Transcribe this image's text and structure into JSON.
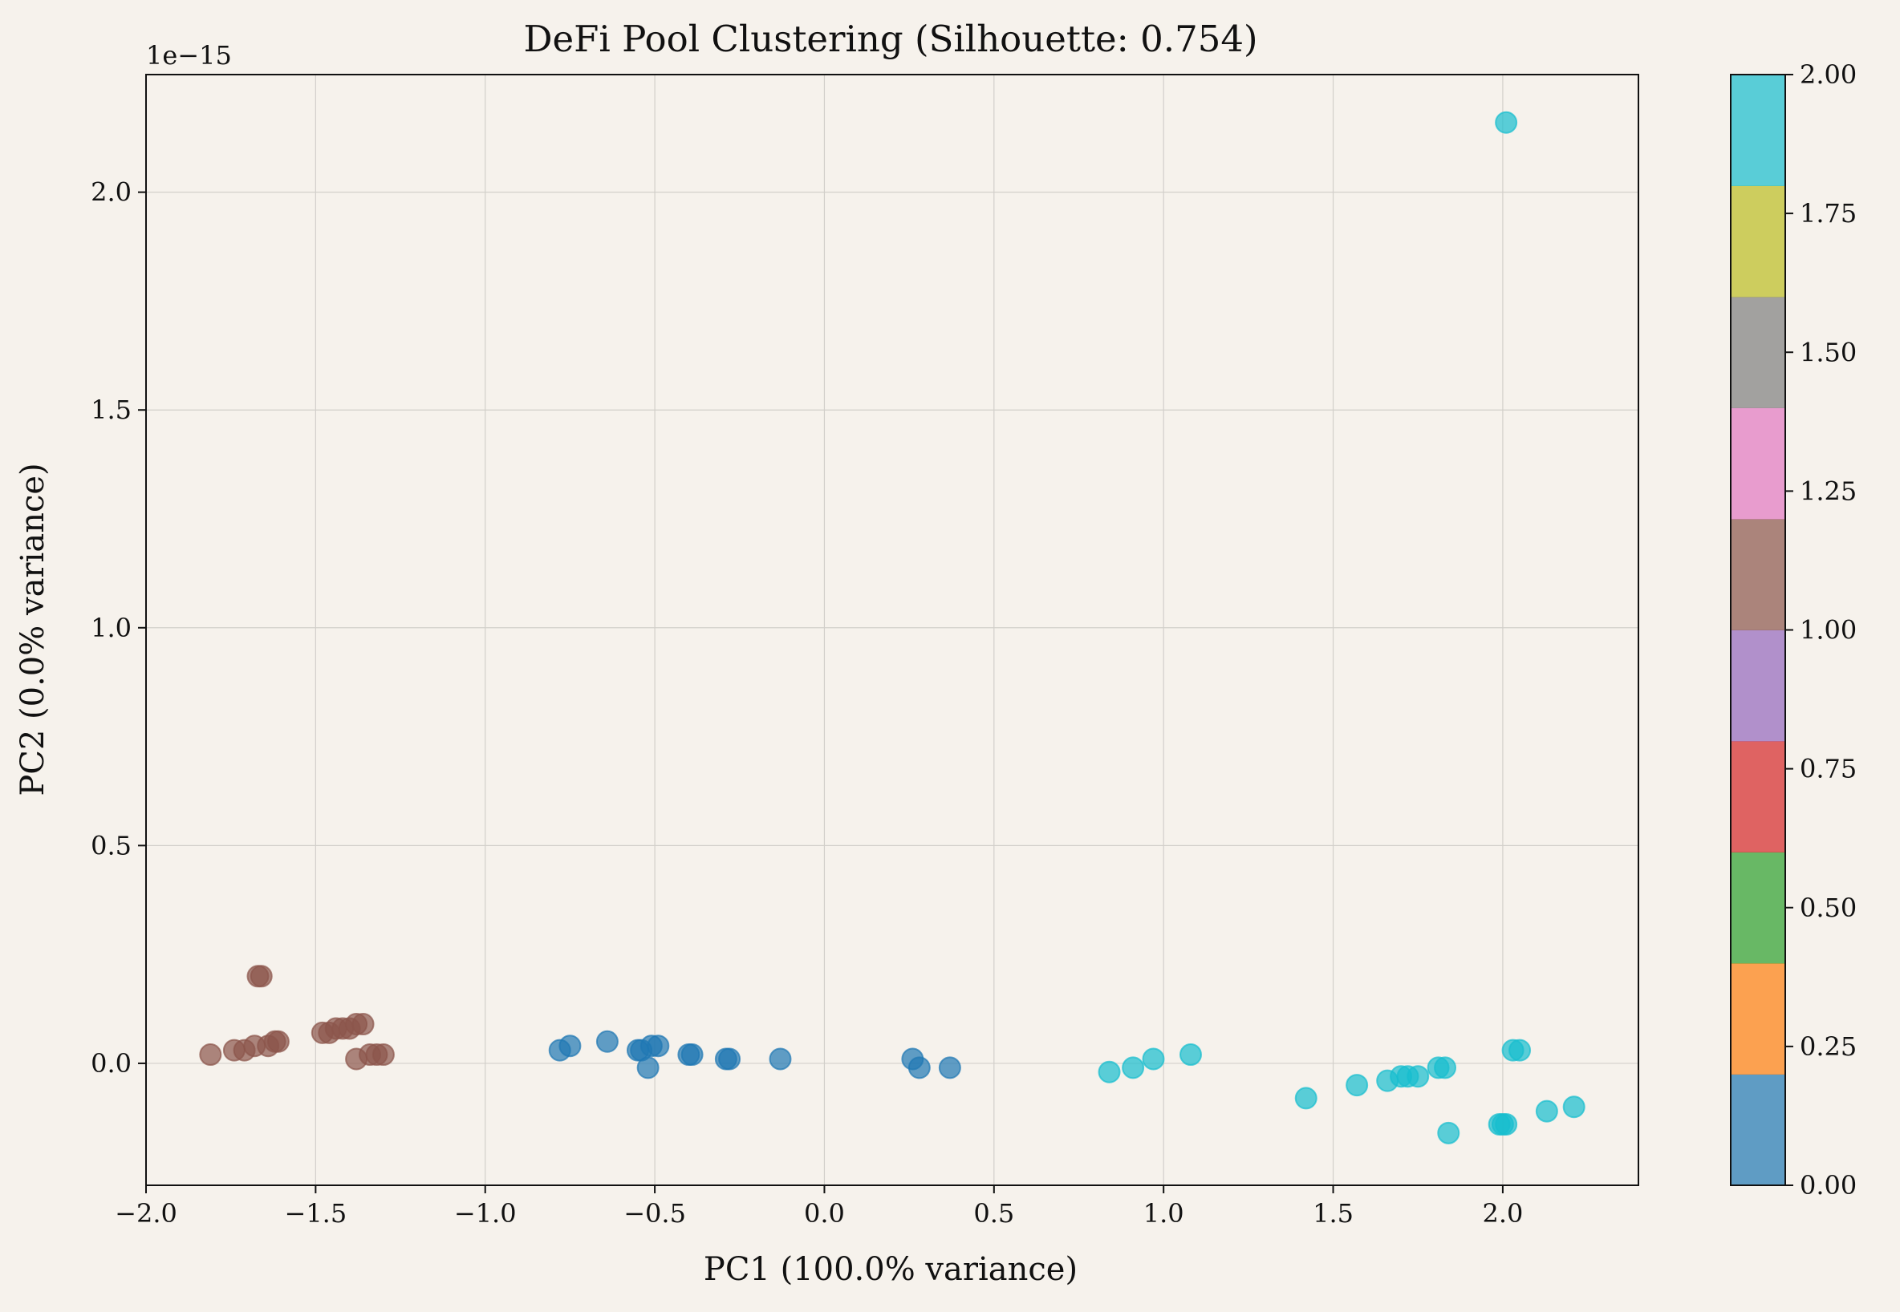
{
  "chart_data": {
    "type": "scatter",
    "title": "DeFi Pool Clustering (Silhouette: 0.754)",
    "xlabel": "PC1 (100.0% variance)",
    "ylabel": "PC2 (0.0% variance)",
    "y_offset_label": "1e−15",
    "xlim": [
      -2.0,
      2.4
    ],
    "ylim": [
      -0.28,
      2.27
    ],
    "x_ticks": [
      -2.0,
      -1.5,
      -1.0,
      -0.5,
      0.0,
      0.5,
      1.0,
      1.5,
      2.0
    ],
    "x_tick_labels": [
      "−2.0",
      "−1.5",
      "−1.0",
      "−0.5",
      "0.0",
      "0.5",
      "1.0",
      "1.5",
      "2.0"
    ],
    "y_ticks": [
      0.0,
      0.5,
      1.0,
      1.5,
      2.0
    ],
    "y_tick_labels": [
      "0.0",
      "0.5",
      "1.0",
      "1.5",
      "2.0"
    ],
    "grid": true,
    "background": "#f6f2ec",
    "colorbar": {
      "min": 0.0,
      "max": 2.0,
      "ticks": [
        0.0,
        0.25,
        0.5,
        0.75,
        1.0,
        1.25,
        1.5,
        1.75,
        2.0
      ],
      "tick_labels": [
        "0.00",
        "0.25",
        "0.50",
        "0.75",
        "1.00",
        "1.25",
        "1.50",
        "1.75",
        "2.00"
      ],
      "bands": [
        "#1f77b4",
        "#ff7f0e",
        "#2ca02c",
        "#d62728",
        "#9467bd",
        "#8c564b",
        "#e377c2",
        "#7f7f7f",
        "#bcbd22",
        "#17becf"
      ],
      "alpha": 0.7
    },
    "series": [
      {
        "cluster": 1,
        "color": "#8c564b",
        "points": [
          [
            -1.81,
            0.02
          ],
          [
            -1.74,
            0.03
          ],
          [
            -1.71,
            0.03
          ],
          [
            -1.68,
            0.04
          ],
          [
            -1.64,
            0.04
          ],
          [
            -1.62,
            0.05
          ],
          [
            -1.61,
            0.05
          ],
          [
            -1.66,
            0.2
          ],
          [
            -1.67,
            0.2
          ],
          [
            -1.48,
            0.07
          ],
          [
            -1.46,
            0.07
          ],
          [
            -1.44,
            0.08
          ],
          [
            -1.42,
            0.08
          ],
          [
            -1.4,
            0.08
          ],
          [
            -1.38,
            0.09
          ],
          [
            -1.36,
            0.09
          ],
          [
            -1.38,
            0.01
          ],
          [
            -1.34,
            0.02
          ],
          [
            -1.32,
            0.02
          ],
          [
            -1.3,
            0.02
          ]
        ]
      },
      {
        "cluster": 0,
        "color": "#1f77b4",
        "points": [
          [
            -0.78,
            0.03
          ],
          [
            -0.75,
            0.04
          ],
          [
            -0.64,
            0.05
          ],
          [
            -0.55,
            0.03
          ],
          [
            -0.54,
            0.03
          ],
          [
            -0.51,
            0.04
          ],
          [
            -0.49,
            0.04
          ],
          [
            -0.52,
            -0.01
          ],
          [
            -0.4,
            0.02
          ],
          [
            -0.39,
            0.02
          ],
          [
            -0.29,
            0.01
          ],
          [
            -0.28,
            0.01
          ],
          [
            -0.13,
            0.01
          ],
          [
            0.26,
            0.01
          ],
          [
            0.28,
            -0.01
          ],
          [
            0.37,
            -0.01
          ]
        ]
      },
      {
        "cluster": 2,
        "color": "#17becf",
        "points": [
          [
            0.84,
            -0.02
          ],
          [
            0.91,
            -0.01
          ],
          [
            0.97,
            0.01
          ],
          [
            1.08,
            0.02
          ],
          [
            1.42,
            -0.08
          ],
          [
            1.57,
            -0.05
          ],
          [
            1.66,
            -0.04
          ],
          [
            1.7,
            -0.03
          ],
          [
            1.72,
            -0.03
          ],
          [
            1.75,
            -0.03
          ],
          [
            1.81,
            -0.01
          ],
          [
            1.83,
            -0.01
          ],
          [
            1.84,
            -0.16
          ],
          [
            1.99,
            -0.14
          ],
          [
            2.0,
            -0.14
          ],
          [
            2.01,
            -0.14
          ],
          [
            2.03,
            0.03
          ],
          [
            2.05,
            0.03
          ],
          [
            2.13,
            -0.11
          ],
          [
            2.21,
            -0.1
          ],
          [
            2.01,
            2.16
          ]
        ]
      }
    ]
  }
}
